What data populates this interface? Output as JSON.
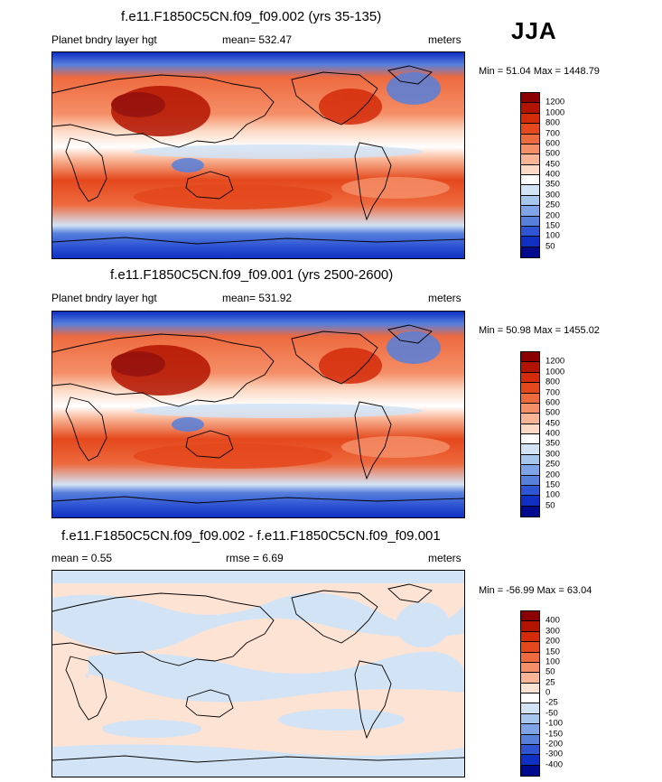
{
  "season": "JJA",
  "panels": [
    {
      "title": "f.e11.F1850C5CN.f09_f09.002 (yrs 35-135)",
      "left_label": "Planet bndry layer hgt",
      "center_label": "mean= 532.47",
      "units": "meters",
      "minmax": "Min =  51.04 Max = 1448.79"
    },
    {
      "title": "f.e11.F1850C5CN.f09_f09.001 (yrs 2500-2600)",
      "left_label": "Planet bndry layer hgt",
      "center_label": "mean= 531.92",
      "units": "meters",
      "minmax": "Min =  50.98 Max = 1455.02"
    },
    {
      "title": "f.e11.F1850C5CN.f09_f09.002 - f.e11.F1850C5CN.f09_f09.001",
      "left_label": "mean =   0.55",
      "center_label": "rmse =   6.69",
      "units": "meters",
      "minmax": "Min = -56.99 Max =  63.04"
    }
  ],
  "colorbar_abs": {
    "labels": [
      "1200",
      "1000",
      "800",
      "700",
      "600",
      "500",
      "450",
      "400",
      "350",
      "300",
      "250",
      "200",
      "150",
      "100",
      "50"
    ],
    "colors": [
      "#8b0000",
      "#b31400",
      "#d42b0a",
      "#e4481c",
      "#ee6a3f",
      "#f58f68",
      "#f9b596",
      "#fcd9c4",
      "#ffffff",
      "#d2e3f5",
      "#a7c6ee",
      "#7ea3e6",
      "#5680dc",
      "#2f55d4",
      "#1030c4",
      "#000a8c"
    ]
  },
  "colorbar_diff": {
    "labels": [
      "400",
      "300",
      "200",
      "150",
      "100",
      "50",
      "25",
      "0",
      "-25",
      "-50",
      "-100",
      "-150",
      "-200",
      "-300",
      "-400"
    ],
    "colors": [
      "#8b0000",
      "#b31400",
      "#d42b0a",
      "#e4481c",
      "#ee6a3f",
      "#f58f68",
      "#f9b596",
      "#fde3d4",
      "#ffffff",
      "#d2e3f5",
      "#a7c6ee",
      "#7ea3e6",
      "#5680dc",
      "#2f55d4",
      "#1030c4",
      "#000a8c"
    ]
  }
}
